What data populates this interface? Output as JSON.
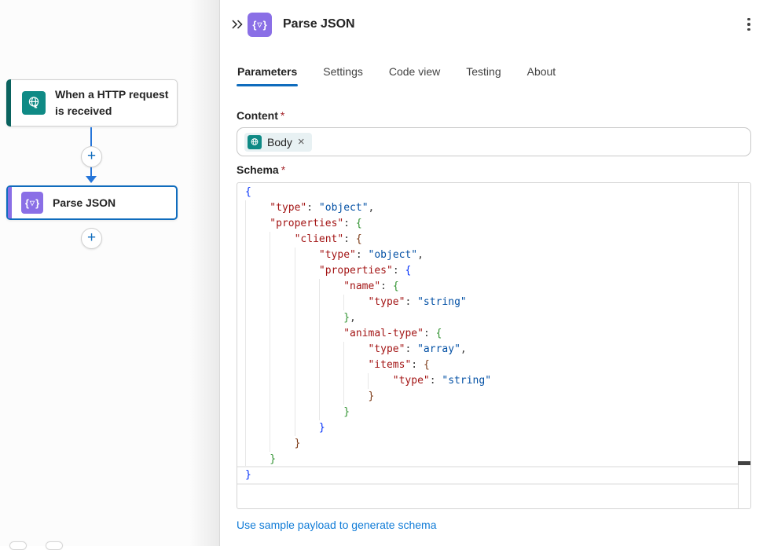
{
  "theme": {
    "accent": "#0f6cbd",
    "link": "#0f7bd7",
    "arrow": "#2575d9",
    "trigger_icon_bg": "#0f8a85",
    "trigger_stripe": "#0a625e",
    "action_icon_bg": "#8a6fe6",
    "action_stripe": "#8a6fe6",
    "required": "#a4262c",
    "code_key": "#a31515",
    "code_value": "#0451a5",
    "code_brace_1": "#0431fa",
    "code_brace_2": "#319331",
    "code_brace_3": "#7b3814"
  },
  "canvas": {
    "trigger_card": {
      "label": "When a HTTP request is received",
      "icon": "http-request-globe"
    },
    "action_card": {
      "label": "Parse JSON",
      "icon": "parse-json-braces",
      "selected": true
    },
    "add_step_label": "+",
    "parse_icon_glyphs": {
      "open": "{",
      "triangle": "▽",
      "close": "}"
    }
  },
  "panel": {
    "header": {
      "title": "Parse JSON",
      "collapse_icon": "double-chevron-right",
      "menu_icon": "kebab-vertical"
    },
    "tabs": [
      {
        "label": "Parameters",
        "active": true
      },
      {
        "label": "Settings",
        "active": false
      },
      {
        "label": "Code view",
        "active": false
      },
      {
        "label": "Testing",
        "active": false
      },
      {
        "label": "About",
        "active": false
      }
    ],
    "content_field": {
      "label": "Content",
      "required_mark": "*",
      "token": {
        "label": "Body",
        "icon": "http-request-globe",
        "remove_glyph": "×"
      }
    },
    "schema_field": {
      "label": "Schema",
      "required_mark": "*",
      "lines": [
        {
          "indent": 0,
          "segs": [
            [
              "b1",
              "{"
            ]
          ]
        },
        {
          "indent": 1,
          "segs": [
            [
              "k",
              "\"type\""
            ],
            [
              "p",
              ": "
            ],
            [
              "v",
              "\"object\""
            ],
            [
              "p",
              ","
            ]
          ]
        },
        {
          "indent": 1,
          "segs": [
            [
              "k",
              "\"properties\""
            ],
            [
              "p",
              ": "
            ],
            [
              "b2",
              "{"
            ]
          ]
        },
        {
          "indent": 2,
          "segs": [
            [
              "k",
              "\"client\""
            ],
            [
              "p",
              ": "
            ],
            [
              "b3",
              "{"
            ]
          ]
        },
        {
          "indent": 3,
          "segs": [
            [
              "k",
              "\"type\""
            ],
            [
              "p",
              ": "
            ],
            [
              "v",
              "\"object\""
            ],
            [
              "p",
              ","
            ]
          ]
        },
        {
          "indent": 3,
          "segs": [
            [
              "k",
              "\"properties\""
            ],
            [
              "p",
              ": "
            ],
            [
              "b1",
              "{"
            ]
          ]
        },
        {
          "indent": 4,
          "segs": [
            [
              "k",
              "\"name\""
            ],
            [
              "p",
              ": "
            ],
            [
              "b2",
              "{"
            ]
          ]
        },
        {
          "indent": 5,
          "segs": [
            [
              "k",
              "\"type\""
            ],
            [
              "p",
              ": "
            ],
            [
              "v",
              "\"string\""
            ]
          ]
        },
        {
          "indent": 4,
          "segs": [
            [
              "b2",
              "}"
            ],
            [
              "p",
              ","
            ]
          ]
        },
        {
          "indent": 4,
          "segs": [
            [
              "k",
              "\"animal-type\""
            ],
            [
              "p",
              ": "
            ],
            [
              "b2",
              "{"
            ]
          ]
        },
        {
          "indent": 5,
          "segs": [
            [
              "k",
              "\"type\""
            ],
            [
              "p",
              ": "
            ],
            [
              "v",
              "\"array\""
            ],
            [
              "p",
              ","
            ]
          ]
        },
        {
          "indent": 5,
          "segs": [
            [
              "k",
              "\"items\""
            ],
            [
              "p",
              ": "
            ],
            [
              "b3",
              "{"
            ]
          ]
        },
        {
          "indent": 6,
          "segs": [
            [
              "k",
              "\"type\""
            ],
            [
              "p",
              ": "
            ],
            [
              "v",
              "\"string\""
            ]
          ]
        },
        {
          "indent": 5,
          "segs": [
            [
              "b3",
              "}"
            ]
          ]
        },
        {
          "indent": 4,
          "segs": [
            [
              "b2",
              "}"
            ]
          ]
        },
        {
          "indent": 3,
          "segs": [
            [
              "b1",
              "}"
            ]
          ]
        },
        {
          "indent": 2,
          "segs": [
            [
              "b3",
              "}"
            ]
          ]
        },
        {
          "indent": 1,
          "segs": [
            [
              "b2",
              "}"
            ]
          ]
        },
        {
          "indent": 0,
          "segs": [
            [
              "b1",
              "}"
            ]
          ],
          "current": true
        }
      ]
    },
    "link_label": "Use sample payload to generate schema"
  }
}
